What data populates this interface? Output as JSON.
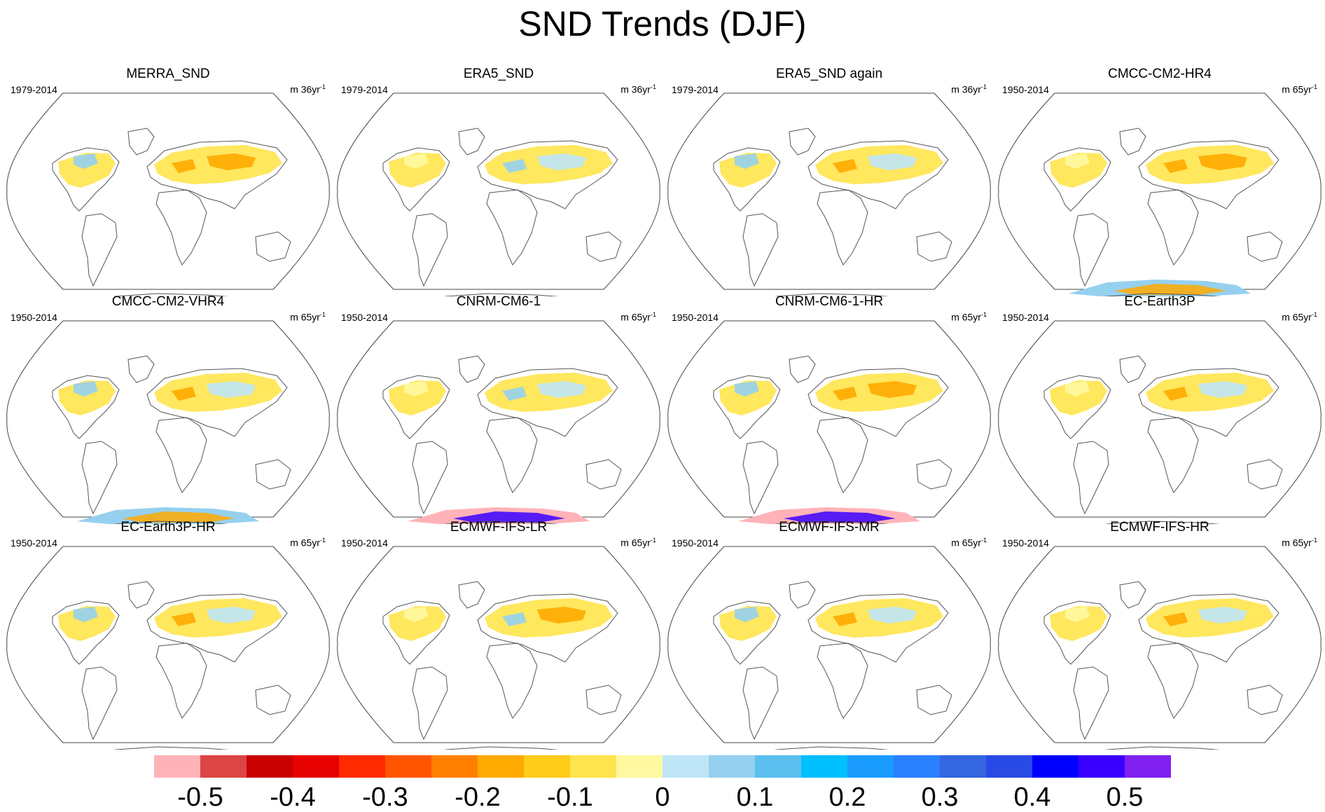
{
  "title": "SND Trends (DJF)",
  "panels": [
    {
      "title": "MERRA_SND",
      "period": "1979-2014",
      "units": "m 36yr",
      "units_exp": "-1",
      "antarctic": "none"
    },
    {
      "title": "ERA5_SND",
      "period": "1979-2014",
      "units": "m 36yr",
      "units_exp": "-1",
      "antarctic": "none"
    },
    {
      "title": "ERA5_SND again",
      "period": "1979-2014",
      "units": "m 36yr",
      "units_exp": "-1",
      "antarctic": "none"
    },
    {
      "title": "CMCC-CM2-HR4",
      "period": "1950-2014",
      "units": "m 65yr",
      "units_exp": "-1",
      "antarctic": "mixed"
    },
    {
      "title": "CMCC-CM2-VHR4",
      "period": "1950-2014",
      "units": "m 65yr",
      "units_exp": "-1",
      "antarctic": "mixed"
    },
    {
      "title": "CNRM-CM6-1",
      "period": "1950-2014",
      "units": "m 65yr",
      "units_exp": "-1",
      "antarctic": "strong"
    },
    {
      "title": "CNRM-CM6-1-HR",
      "period": "1950-2014",
      "units": "m 65yr",
      "units_exp": "-1",
      "antarctic": "strong"
    },
    {
      "title": "EC-Earth3P",
      "period": "1950-2014",
      "units": "m 65yr",
      "units_exp": "-1",
      "antarctic": "none"
    },
    {
      "title": "EC-Earth3P-HR",
      "period": "1950-2014",
      "units": "m 65yr",
      "units_exp": "-1",
      "antarctic": "none"
    },
    {
      "title": "ECMWF-IFS-LR",
      "period": "1950-2014",
      "units": "m 65yr",
      "units_exp": "-1",
      "antarctic": "none"
    },
    {
      "title": "ECMWF-IFS-MR",
      "period": "1950-2014",
      "units": "m 65yr",
      "units_exp": "-1",
      "antarctic": "none"
    },
    {
      "title": "ECMWF-IFS-HR",
      "period": "1950-2014",
      "units": "m 65yr",
      "units_exp": "-1",
      "antarctic": "none"
    }
  ],
  "colorbar": {
    "colors": [
      "#ffb3b8",
      "#dd4444",
      "#c80000",
      "#e60000",
      "#ff2a00",
      "#ff5500",
      "#ff8000",
      "#ffaa00",
      "#ffcc1a",
      "#ffe44d",
      "#fff8a0",
      "#bfe6f7",
      "#96d0ef",
      "#5bc0f0",
      "#00bfff",
      "#1a9cff",
      "#2a80ff",
      "#3366e0",
      "#2a4ae6",
      "#0000ff",
      "#3a00ff",
      "#8020f0"
    ],
    "labels": [
      "-0.5",
      "-0.4",
      "-0.3",
      "-0.2",
      "-0.1",
      "0",
      "0.1",
      "0.2",
      "0.3",
      "0.4",
      "0.5"
    ]
  }
}
